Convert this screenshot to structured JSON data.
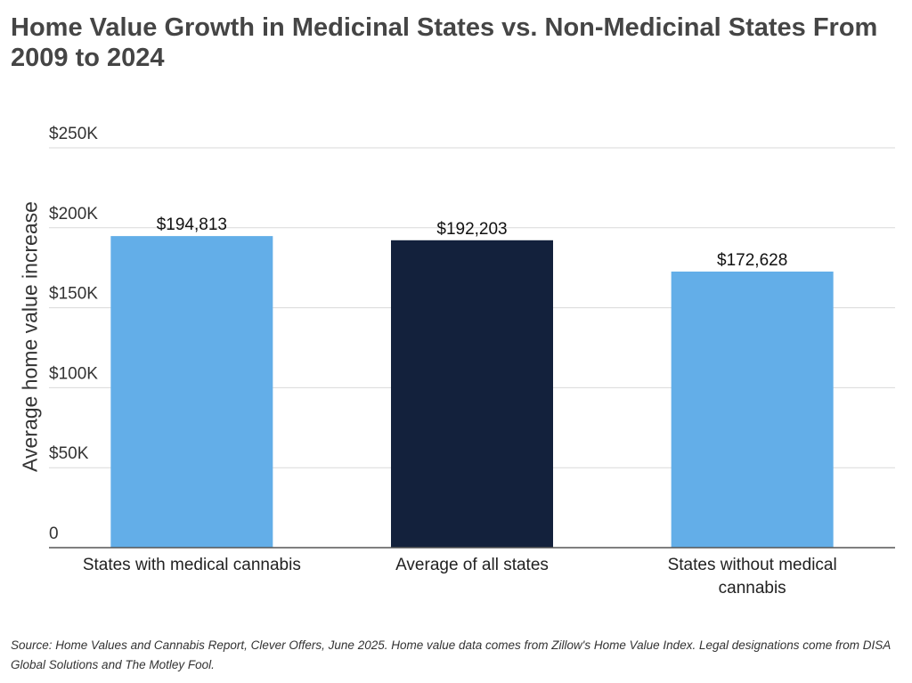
{
  "chart_data": {
    "type": "bar",
    "title": "Home Value Growth in Medicinal States vs. Non-Medicinal States From 2009 to 2024",
    "y_label": "Average home value increase",
    "categories": [
      "States with medical cannabis",
      "Average of all states",
      "States without medical cannabis"
    ],
    "values": [
      194813,
      192203,
      172628
    ],
    "value_labels": [
      "$194,813",
      "$192,203",
      "$172,628"
    ],
    "colors": [
      "#63aee8",
      "#13213c",
      "#63aee8"
    ],
    "ylim": [
      0,
      250000
    ],
    "yticks": [
      0,
      {
        "value": 50000,
        "label": "$50K"
      },
      {
        "value": 100000,
        "label": "$100K"
      },
      {
        "value": 150000,
        "label": "$150K"
      },
      {
        "value": 200000,
        "label": "$200K"
      },
      {
        "value": 250000,
        "label": "$250K"
      }
    ],
    "grid": true,
    "source": "Source: Home Values and Cannabis Report, Clever Offers, June 2025. Home value data comes from Zillow's Home Value Index. Legal designations come from DISA Global Solutions and The Motley Fool."
  }
}
